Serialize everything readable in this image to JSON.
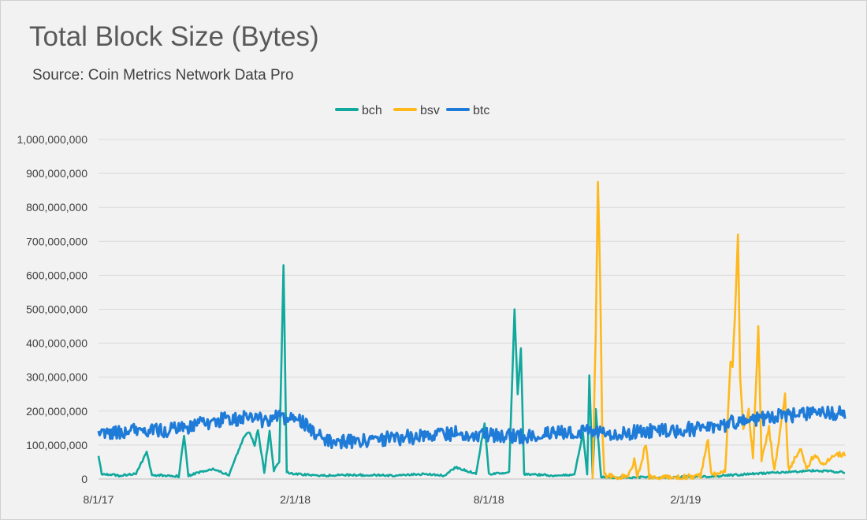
{
  "chart_data": {
    "type": "line",
    "title": "Total Block Size (Bytes)",
    "subtitle": "Source: Coin Metrics Network Data Pro",
    "x_ticks": [
      "8/1/17",
      "2/1/18",
      "8/1/18",
      "2/1/19"
    ],
    "x_range": [
      "2017-08-01",
      "2019-06-30"
    ],
    "y_ticks": [
      "0",
      "100,000,000",
      "200,000,000",
      "300,000,000",
      "400,000,000",
      "500,000,000",
      "600,000,000",
      "700,000,000",
      "800,000,000",
      "900,000,000",
      "1,000,000,000"
    ],
    "ylim": [
      0,
      1000000000
    ],
    "grid": true,
    "legend_position": "top",
    "series": [
      {
        "name": "bch",
        "color": "#12a89d",
        "points": [
          [
            "2017-08-01",
            70000000
          ],
          [
            "2017-08-04",
            15000000
          ],
          [
            "2017-08-20",
            10000000
          ],
          [
            "2017-09-05",
            15000000
          ],
          [
            "2017-09-15",
            78000000
          ],
          [
            "2017-09-20",
            12000000
          ],
          [
            "2017-10-05",
            10000000
          ],
          [
            "2017-10-15",
            8000000
          ],
          [
            "2017-10-20",
            127000000
          ],
          [
            "2017-10-24",
            10000000
          ],
          [
            "2017-11-15",
            30000000
          ],
          [
            "2017-12-01",
            12000000
          ],
          [
            "2017-12-15",
            125000000
          ],
          [
            "2017-12-20",
            140000000
          ],
          [
            "2017-12-25",
            100000000
          ],
          [
            "2017-12-28",
            145000000
          ],
          [
            "2018-01-03",
            20000000
          ],
          [
            "2018-01-08",
            140000000
          ],
          [
            "2018-01-12",
            25000000
          ],
          [
            "2018-01-17",
            50000000
          ],
          [
            "2018-01-21",
            630000000
          ],
          [
            "2018-01-24",
            20000000
          ],
          [
            "2018-02-01",
            15000000
          ],
          [
            "2018-03-01",
            10000000
          ],
          [
            "2018-04-01",
            12000000
          ],
          [
            "2018-05-01",
            10000000
          ],
          [
            "2018-06-01",
            15000000
          ],
          [
            "2018-06-20",
            10000000
          ],
          [
            "2018-07-01",
            35000000
          ],
          [
            "2018-07-20",
            15000000
          ],
          [
            "2018-07-28",
            165000000
          ],
          [
            "2018-08-01",
            15000000
          ],
          [
            "2018-08-20",
            20000000
          ],
          [
            "2018-08-25",
            500000000
          ],
          [
            "2018-08-28",
            250000000
          ],
          [
            "2018-08-31",
            385000000
          ],
          [
            "2018-09-03",
            15000000
          ],
          [
            "2018-10-01",
            10000000
          ],
          [
            "2018-10-20",
            12000000
          ],
          [
            "2018-10-28",
            135000000
          ],
          [
            "2018-11-01",
            12000000
          ],
          [
            "2018-11-03",
            305000000
          ],
          [
            "2018-11-06",
            15000000
          ],
          [
            "2018-11-09",
            205000000
          ],
          [
            "2018-11-14",
            5000000
          ],
          [
            "2019-01-01",
            5000000
          ],
          [
            "2019-02-01",
            6000000
          ],
          [
            "2019-03-01",
            8000000
          ],
          [
            "2019-04-01",
            15000000
          ],
          [
            "2019-05-01",
            20000000
          ],
          [
            "2019-06-01",
            25000000
          ],
          [
            "2019-06-30",
            20000000
          ]
        ]
      },
      {
        "name": "bsv",
        "color": "#ffb81c",
        "points": [
          [
            "2018-11-06",
            0
          ],
          [
            "2018-11-09",
            430000000
          ],
          [
            "2018-11-11",
            875000000
          ],
          [
            "2018-11-13",
            600000000
          ],
          [
            "2018-11-15",
            150000000
          ],
          [
            "2018-11-17",
            10000000
          ],
          [
            "2018-12-01",
            5000000
          ],
          [
            "2018-12-10",
            10000000
          ],
          [
            "2018-12-15",
            60000000
          ],
          [
            "2018-12-18",
            5000000
          ],
          [
            "2018-12-26",
            105000000
          ],
          [
            "2018-12-29",
            5000000
          ],
          [
            "2019-01-20",
            5000000
          ],
          [
            "2019-02-01",
            5000000
          ],
          [
            "2019-02-15",
            10000000
          ],
          [
            "2019-02-22",
            115000000
          ],
          [
            "2019-02-25",
            10000000
          ],
          [
            "2019-03-10",
            20000000
          ],
          [
            "2019-03-15",
            345000000
          ],
          [
            "2019-03-17",
            330000000
          ],
          [
            "2019-03-20",
            550000000
          ],
          [
            "2019-03-22",
            720000000
          ],
          [
            "2019-03-24",
            300000000
          ],
          [
            "2019-03-27",
            150000000
          ],
          [
            "2019-04-01",
            200000000
          ],
          [
            "2019-04-05",
            60000000
          ],
          [
            "2019-04-10",
            450000000
          ],
          [
            "2019-04-13",
            60000000
          ],
          [
            "2019-04-20",
            150000000
          ],
          [
            "2019-04-25",
            20000000
          ],
          [
            "2019-05-05",
            245000000
          ],
          [
            "2019-05-08",
            30000000
          ],
          [
            "2019-05-20",
            85000000
          ],
          [
            "2019-05-25",
            30000000
          ],
          [
            "2019-06-01",
            70000000
          ],
          [
            "2019-06-10",
            40000000
          ],
          [
            "2019-06-20",
            75000000
          ],
          [
            "2019-06-30",
            70000000
          ]
        ]
      },
      {
        "name": "btc",
        "color": "#1f7bd8",
        "points": [
          [
            "2017-08-01",
            130000000
          ],
          [
            "2017-09-01",
            145000000
          ],
          [
            "2017-10-01",
            140000000
          ],
          [
            "2017-11-01",
            160000000
          ],
          [
            "2017-12-01",
            180000000
          ],
          [
            "2018-01-01",
            175000000
          ],
          [
            "2018-01-20",
            185000000
          ],
          [
            "2018-02-10",
            165000000
          ],
          [
            "2018-03-01",
            110000000
          ],
          [
            "2018-04-01",
            110000000
          ],
          [
            "2018-05-01",
            120000000
          ],
          [
            "2018-06-01",
            125000000
          ],
          [
            "2018-07-01",
            135000000
          ],
          [
            "2018-08-01",
            130000000
          ],
          [
            "2018-09-01",
            125000000
          ],
          [
            "2018-10-01",
            135000000
          ],
          [
            "2018-11-01",
            140000000
          ],
          [
            "2018-12-01",
            135000000
          ],
          [
            "2019-01-01",
            140000000
          ],
          [
            "2019-02-01",
            145000000
          ],
          [
            "2019-03-01",
            155000000
          ],
          [
            "2019-04-01",
            175000000
          ],
          [
            "2019-05-01",
            185000000
          ],
          [
            "2019-06-01",
            190000000
          ],
          [
            "2019-06-30",
            195000000
          ]
        ]
      }
    ]
  }
}
